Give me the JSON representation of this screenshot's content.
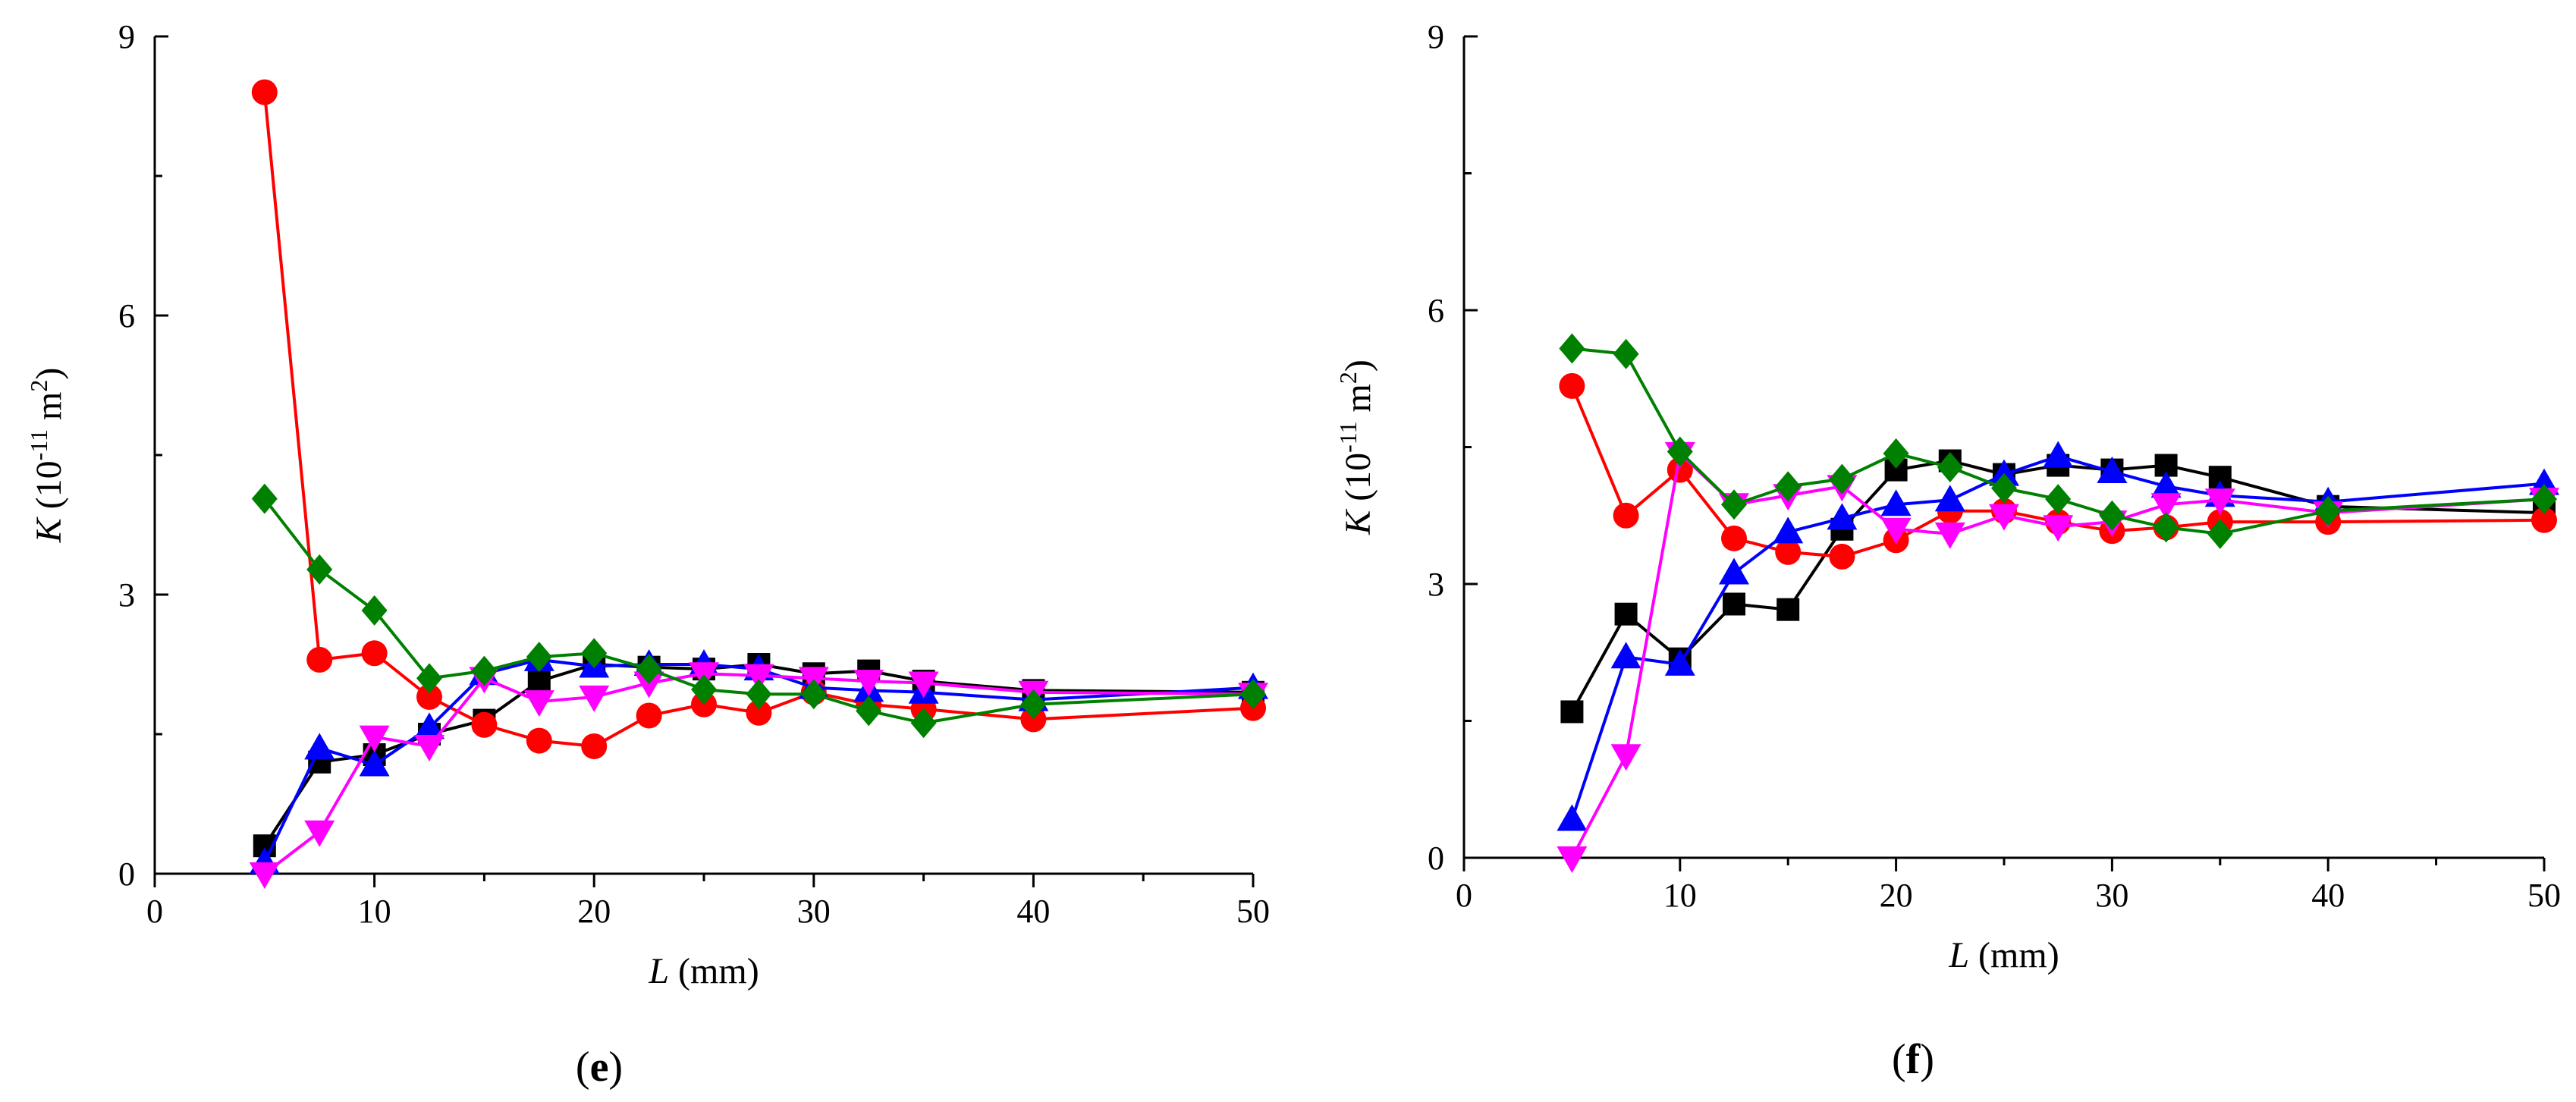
{
  "chart_data": [
    {
      "type": "line",
      "panel_label": "(e)",
      "panel_letter": "e",
      "xlabel": "L (mm)",
      "xlabel_var": "L",
      "xlabel_unit": " (mm)",
      "ylabel_var": "K",
      "ylabel_unit": "(10",
      "ylabel_exp": "-11",
      "ylabel_unit2": " m",
      "ylabel_exp2": "2",
      "ylabel_close": ")",
      "xlim": [
        0,
        50
      ],
      "ylim": [
        0,
        9
      ],
      "xticks": [
        "0",
        "10",
        "20",
        "30",
        "40",
        "50"
      ],
      "yticks": [
        "0",
        "3",
        "6",
        "9"
      ],
      "grid": false,
      "series": [
        {
          "name": "black",
          "color": "#000000",
          "marker": "square",
          "x": [
            5,
            7.5,
            10,
            12.5,
            15,
            17.5,
            20,
            22.5,
            25,
            27.5,
            30,
            32.5,
            35,
            40,
            50
          ],
          "y": [
            0.3,
            1.2,
            1.28,
            1.5,
            1.65,
            2.07,
            2.25,
            2.22,
            2.2,
            2.25,
            2.15,
            2.18,
            2.07,
            1.97,
            1.95
          ]
        },
        {
          "name": "red",
          "color": "#ff0000",
          "marker": "circle",
          "x": [
            5,
            7.5,
            10,
            12.5,
            15,
            17.5,
            20,
            22.5,
            25,
            27.5,
            30,
            32.5,
            35,
            40,
            50
          ],
          "y": [
            8.4,
            2.3,
            2.37,
            1.9,
            1.6,
            1.43,
            1.37,
            1.7,
            1.82,
            1.73,
            1.95,
            1.82,
            1.77,
            1.66,
            1.78
          ]
        },
        {
          "name": "blue",
          "color": "#0000ff",
          "marker": "triangle-up",
          "x": [
            5,
            7.5,
            10,
            12.5,
            15,
            17.5,
            20,
            22.5,
            25,
            27.5,
            30,
            32.5,
            35,
            40,
            50
          ],
          "y": [
            0.12,
            1.35,
            1.17,
            1.57,
            2.15,
            2.3,
            2.23,
            2.25,
            2.25,
            2.2,
            2.0,
            1.97,
            1.95,
            1.87,
            2.0
          ]
        },
        {
          "name": "magenta",
          "color": "#ff00ff",
          "marker": "triangle-down",
          "x": [
            5,
            7.5,
            10,
            12.5,
            15,
            17.5,
            20,
            22.5,
            25,
            27.5,
            30,
            32.5,
            35,
            40,
            50
          ],
          "y": [
            0.0,
            0.45,
            1.47,
            1.37,
            2.1,
            1.85,
            1.9,
            2.05,
            2.15,
            2.13,
            2.1,
            2.07,
            2.05,
            1.95,
            1.93
          ]
        },
        {
          "name": "green",
          "color": "#008000",
          "marker": "diamond",
          "x": [
            5,
            7.5,
            10,
            12.5,
            15,
            17.5,
            20,
            22.5,
            25,
            27.5,
            30,
            32.5,
            35,
            40,
            50
          ],
          "y": [
            4.03,
            3.27,
            2.83,
            2.1,
            2.18,
            2.33,
            2.37,
            2.2,
            1.98,
            1.93,
            1.93,
            1.75,
            1.62,
            1.82,
            1.93
          ]
        }
      ]
    },
    {
      "type": "line",
      "panel_label": "(f)",
      "panel_letter": "f",
      "xlabel": "L (mm)",
      "xlabel_var": "L",
      "xlabel_unit": " (mm)",
      "ylabel_var": "K",
      "ylabel_unit": "(10",
      "ylabel_exp": "-11",
      "ylabel_unit2": " m",
      "ylabel_exp2": "2",
      "ylabel_close": ")",
      "xlim": [
        0,
        50
      ],
      "ylim": [
        0,
        9
      ],
      "xticks": [
        "0",
        "10",
        "20",
        "30",
        "40",
        "50"
      ],
      "yticks": [
        "0",
        "3",
        "6",
        "9"
      ],
      "grid": false,
      "series": [
        {
          "name": "black",
          "color": "#000000",
          "marker": "square",
          "x": [
            5,
            7.5,
            10,
            12.5,
            15,
            17.5,
            20,
            22.5,
            25,
            27.5,
            30,
            32.5,
            35,
            40,
            50
          ],
          "y": [
            1.6,
            2.67,
            2.18,
            2.78,
            2.72,
            3.6,
            4.25,
            4.35,
            4.2,
            4.3,
            4.25,
            4.3,
            4.17,
            3.85,
            3.78
          ]
        },
        {
          "name": "red",
          "color": "#ff0000",
          "marker": "circle",
          "x": [
            5,
            7.5,
            10,
            12.5,
            15,
            17.5,
            20,
            22.5,
            25,
            27.5,
            30,
            32.5,
            35,
            40,
            50
          ],
          "y": [
            5.17,
            3.75,
            4.25,
            3.5,
            3.35,
            3.3,
            3.48,
            3.8,
            3.8,
            3.68,
            3.58,
            3.62,
            3.68,
            3.68,
            3.7
          ]
        },
        {
          "name": "blue",
          "color": "#0000ff",
          "marker": "triangle-up",
          "x": [
            5,
            7.5,
            10,
            12.5,
            15,
            17.5,
            20,
            22.5,
            25,
            27.5,
            30,
            32.5,
            35,
            40,
            50
          ],
          "y": [
            0.42,
            2.2,
            2.12,
            3.12,
            3.57,
            3.72,
            3.87,
            3.92,
            4.2,
            4.4,
            4.23,
            4.07,
            3.97,
            3.9,
            4.1
          ]
        },
        {
          "name": "magenta",
          "color": "#ff00ff",
          "marker": "triangle-down",
          "x": [
            5,
            7.5,
            10,
            12.5,
            15,
            17.5,
            20,
            22.5,
            25,
            27.5,
            30,
            32.5,
            35,
            40,
            50
          ],
          "y": [
            0.0,
            1.12,
            4.43,
            3.87,
            3.97,
            4.07,
            3.6,
            3.55,
            3.75,
            3.63,
            3.68,
            3.87,
            3.92,
            3.78,
            3.93
          ]
        },
        {
          "name": "green",
          "color": "#008000",
          "marker": "diamond",
          "x": [
            5,
            7.5,
            10,
            12.5,
            15,
            17.5,
            20,
            22.5,
            25,
            27.5,
            30,
            32.5,
            35,
            40,
            50
          ],
          "y": [
            5.58,
            5.52,
            4.45,
            3.87,
            4.07,
            4.15,
            4.43,
            4.28,
            4.05,
            3.93,
            3.75,
            3.62,
            3.55,
            3.8,
            3.93
          ]
        }
      ]
    }
  ]
}
